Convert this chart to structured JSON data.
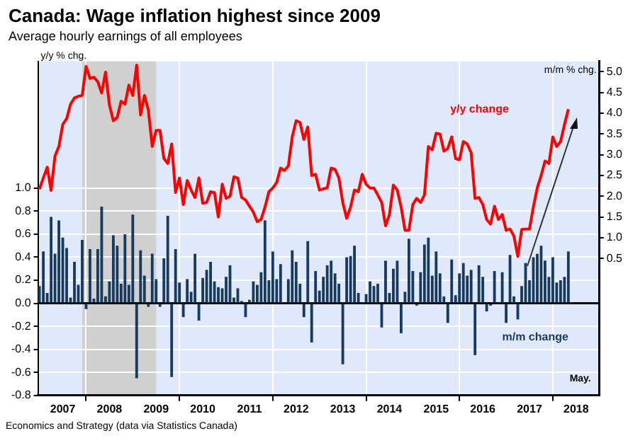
{
  "chart_data": {
    "type": "bar",
    "title": "Canada: Wage inflation highest since 2009",
    "subtitle": "Average hourly earnings of all employees",
    "ylabel": "y/y % chg.",
    "y2label": "m/m % chg.",
    "x": [
      "2007-01",
      "2007-02",
      "2007-03",
      "2007-04",
      "2007-05",
      "2007-06",
      "2007-07",
      "2007-08",
      "2007-09",
      "2007-10",
      "2007-11",
      "2007-12",
      "2008-01",
      "2008-02",
      "2008-03",
      "2008-04",
      "2008-05",
      "2008-06",
      "2008-07",
      "2008-08",
      "2008-09",
      "2008-10",
      "2008-11",
      "2008-12",
      "2009-01",
      "2009-02",
      "2009-03",
      "2009-04",
      "2009-05",
      "2009-06",
      "2009-07",
      "2009-08",
      "2009-09",
      "2009-10",
      "2009-11",
      "2009-12",
      "2010-01",
      "2010-02",
      "2010-03",
      "2010-04",
      "2010-05",
      "2010-06",
      "2010-07",
      "2010-08",
      "2010-09",
      "2010-10",
      "2010-11",
      "2010-12",
      "2011-01",
      "2011-02",
      "2011-03",
      "2011-04",
      "2011-05",
      "2011-06",
      "2011-07",
      "2011-08",
      "2011-09",
      "2011-10",
      "2011-11",
      "2011-12",
      "2012-01",
      "2012-02",
      "2012-03",
      "2012-04",
      "2012-05",
      "2012-06",
      "2012-07",
      "2012-08",
      "2012-09",
      "2012-10",
      "2012-11",
      "2012-12",
      "2013-01",
      "2013-02",
      "2013-03",
      "2013-04",
      "2013-05",
      "2013-06",
      "2013-07",
      "2013-08",
      "2013-09",
      "2013-10",
      "2013-11",
      "2013-12",
      "2014-01",
      "2014-02",
      "2014-03",
      "2014-04",
      "2014-05",
      "2014-06",
      "2014-07",
      "2014-08",
      "2014-09",
      "2014-10",
      "2014-11",
      "2014-12",
      "2015-01",
      "2015-02",
      "2015-03",
      "2015-04",
      "2015-05",
      "2015-06",
      "2015-07",
      "2015-08",
      "2015-09",
      "2015-10",
      "2015-11",
      "2015-12",
      "2016-01",
      "2016-02",
      "2016-03",
      "2016-04",
      "2016-05",
      "2016-06",
      "2016-07",
      "2016-08",
      "2016-09",
      "2016-10",
      "2016-11",
      "2016-12",
      "2017-01",
      "2017-02",
      "2017-03",
      "2017-04",
      "2017-05",
      "2017-06",
      "2017-07",
      "2017-08",
      "2017-09",
      "2017-10",
      "2017-11",
      "2017-12",
      "2018-01",
      "2018-02",
      "2018-03",
      "2018-04",
      "2018-05"
    ],
    "series": [
      {
        "name": "m/m change",
        "color": "#173a5e",
        "values": [
          0.15,
          0.45,
          0.09,
          0.75,
          0.43,
          0.72,
          0.57,
          0.48,
          0.05,
          0.36,
          0.16,
          0.55,
          -0.05,
          0.47,
          0.04,
          0.47,
          0.84,
          0.06,
          0.19,
          0.59,
          0.5,
          0.17,
          0.6,
          0.16,
          0.77,
          -0.65,
          0.46,
          0.24,
          -0.03,
          0.43,
          0.21,
          -0.03,
          0.39,
          0.76,
          -0.64,
          0.47,
          0.18,
          -0.12,
          0.21,
          0.1,
          0.43,
          -0.15,
          0.22,
          0.29,
          0.36,
          0.19,
          0.14,
          0.13,
          0.23,
          0.33,
          0.05,
          0.13,
          0.02,
          -0.12,
          0.03,
          0.19,
          0.16,
          0.27,
          0.72,
          0.2,
          0.45,
          0.21,
          0.34,
          0.0,
          0.21,
          0.46,
          0.36,
          0.17,
          -0.12,
          0.54,
          -0.34,
          0.28,
          0.11,
          0.23,
          0.33,
          0.37,
          0.26,
          0.17,
          -0.53,
          0.4,
          0.41,
          0.5,
          0.09,
          0.0,
          0.08,
          0.19,
          0.15,
          0.17,
          -0.21,
          0.37,
          0.09,
          0.3,
          0.37,
          -0.26,
          0.1,
          0.56,
          0.28,
          -0.02,
          0.27,
          0.51,
          0.57,
          0.24,
          0.45,
          0.26,
          0.06,
          -0.17,
          0.38,
          0.07,
          0.26,
          0.35,
          0.24,
          0.29,
          -0.45,
          0.33,
          0.23,
          -0.07,
          -0.02,
          0.28,
          0.0,
          0.27,
          -0.17,
          0.42,
          0.06,
          -0.14,
          0.15,
          0.35,
          0.2,
          0.4,
          0.43,
          0.5,
          0.37,
          0.23,
          0.4,
          0.18,
          0.2,
          0.23,
          0.45
        ]
      },
      {
        "name": "y/y change",
        "type": "line",
        "axis": "y2",
        "color": "#ff0000",
        "values": [
          2.17,
          2.44,
          2.7,
          2.14,
          2.97,
          3.2,
          3.73,
          3.87,
          4.22,
          4.37,
          4.41,
          4.43,
          5.13,
          4.84,
          4.87,
          4.76,
          4.49,
          4.99,
          4.2,
          3.82,
          3.9,
          4.29,
          4.22,
          4.68,
          4.43,
          5.16,
          3.96,
          4.43,
          4.08,
          3.2,
          3.59,
          3.59,
          2.91,
          2.79,
          3.26,
          2.09,
          2.44,
          1.8,
          2.38,
          2.15,
          1.97,
          2.44,
          1.83,
          1.85,
          2.11,
          2.09,
          1.5,
          2.29,
          1.95,
          2.0,
          2.47,
          2.44,
          1.97,
          1.91,
          1.76,
          1.62,
          1.39,
          1.44,
          1.74,
          2.11,
          2.2,
          2.33,
          2.68,
          2.62,
          2.73,
          3.43,
          3.82,
          3.78,
          3.37,
          3.67,
          2.5,
          2.53,
          2.15,
          2.18,
          2.2,
          2.68,
          2.65,
          2.44,
          1.85,
          1.47,
          1.74,
          2.15,
          2.11,
          2.53,
          2.29,
          2.2,
          2.2,
          2.03,
          1.85,
          1.29,
          1.56,
          2.27,
          2.15,
          1.74,
          1.18,
          1.18,
          1.8,
          1.95,
          1.85,
          2.03,
          3.2,
          3.12,
          3.52,
          3.5,
          3.09,
          3.15,
          3.43,
          2.91,
          2.88,
          3.32,
          3.26,
          3.05,
          1.95,
          1.97,
          1.8,
          1.44,
          1.33,
          1.76,
          1.44,
          1.56,
          1.18,
          1.21,
          1.04,
          0.55,
          1.2,
          1.21,
          1.21,
          1.74,
          2.2,
          2.5,
          2.85,
          2.79,
          3.43,
          3.2,
          3.32,
          3.73,
          4.1
        ]
      }
    ],
    "xlim": [
      "2006-12-20",
      "2019-01"
    ],
    "xticks": [
      {
        "value": "2007-07",
        "label": "2007"
      },
      {
        "value": "2008-01",
        "label": null
      },
      {
        "value": "2008-07",
        "label": "2008"
      },
      {
        "value": "2009-07",
        "label": "2009"
      },
      {
        "value": "2010-01",
        "label": null
      },
      {
        "value": "2010-07",
        "label": "2010"
      },
      {
        "value": "2011-07",
        "label": "2011"
      },
      {
        "value": "2012-01",
        "label": null
      },
      {
        "value": "2012-07",
        "label": "2012"
      },
      {
        "value": "2013-07",
        "label": "2013"
      },
      {
        "value": "2014-01",
        "label": null
      },
      {
        "value": "2014-07",
        "label": "2014"
      },
      {
        "value": "2015-07",
        "label": "2015"
      },
      {
        "value": "2016-01",
        "label": null
      },
      {
        "value": "2016-07",
        "label": "2016"
      },
      {
        "value": "2017-07",
        "label": "2017"
      },
      {
        "value": "2018-01",
        "label": null
      },
      {
        "value": "2018-07",
        "label": "2018"
      }
    ],
    "ylim": [
      -0.8,
      2.1
    ],
    "yticks": [
      -0.8,
      -0.6,
      -0.4,
      -0.2,
      {
        "value": 0,
        "label": "0.0"
      },
      0.2,
      0.4,
      0.6,
      0.8,
      {
        "value": 1,
        "label": "1.0"
      }
    ],
    "y2lim": [
      -2.8,
      5.25
    ],
    "y2ticks": [
      0.5,
      {
        "value": 1,
        "label": "1.0"
      },
      1.5,
      {
        "value": 2,
        "label": "2.0"
      },
      2.5,
      {
        "value": 3,
        "label": "3.0"
      },
      3.5,
      {
        "value": 4,
        "label": "4.0"
      },
      4.5,
      {
        "value": 5,
        "label": "5.0"
      }
    ],
    "bands": [
      {
        "axis": "x",
        "from": "2007-12",
        "to": "2009-07",
        "color": "#d0d0d0"
      }
    ],
    "grid": true,
    "annotations": [
      "May.",
      "Economics and Strategy (data via Statistics Canada)"
    ]
  }
}
